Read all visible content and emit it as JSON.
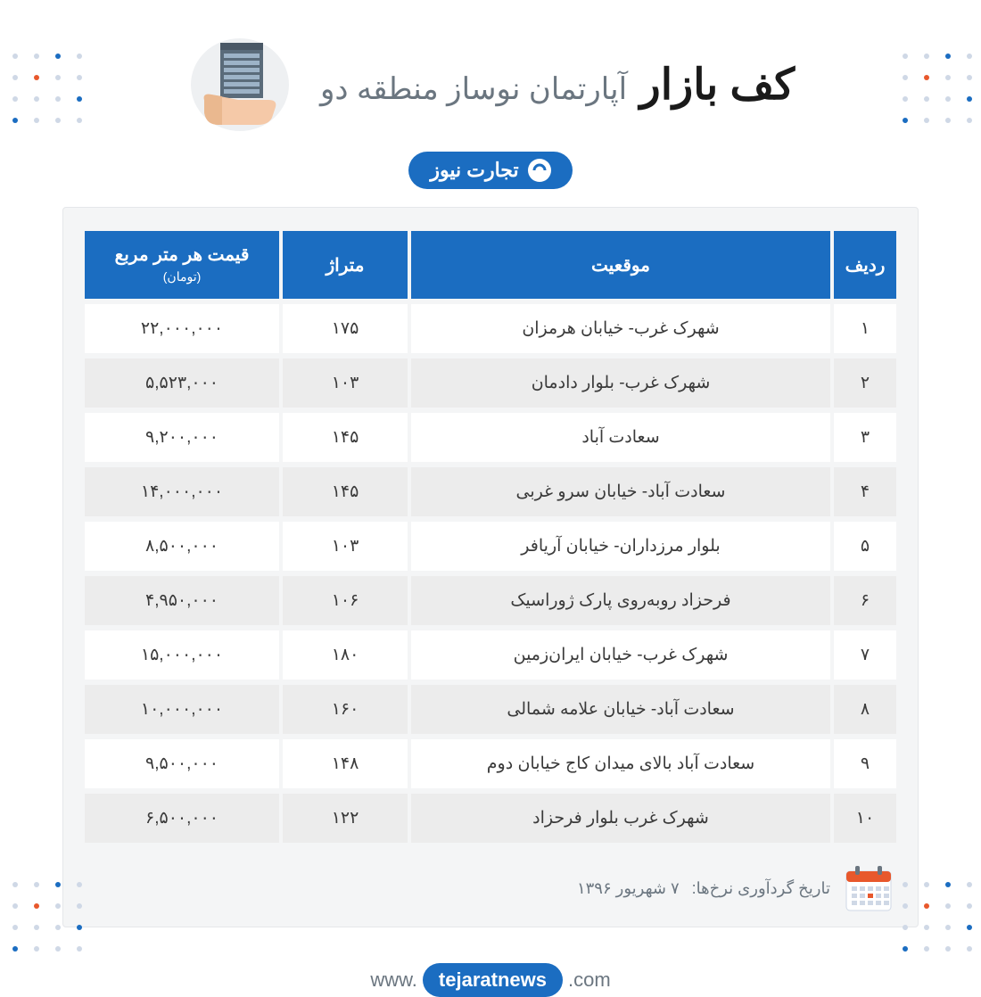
{
  "header": {
    "title_main": "کف بازار",
    "title_sub": "آپارتمان نوساز منطقه دو",
    "logo_text": "تجارت نیوز"
  },
  "table": {
    "columns": {
      "num": "ردیف",
      "location": "موقعیت",
      "area": "متراژ",
      "price": "قیمت هر متر مربع",
      "price_unit": "(تومان)"
    },
    "rows": [
      {
        "n": "۱",
        "loc": "شهرک غرب- خیابان هرمزان",
        "area": "۱۷۵",
        "price": "۲۲,۰۰۰,۰۰۰"
      },
      {
        "n": "۲",
        "loc": "شهرک غرب- بلوار دادمان",
        "area": "۱۰۳",
        "price": "۵,۵۲۳,۰۰۰"
      },
      {
        "n": "۳",
        "loc": "سعادت آباد",
        "area": "۱۴۵",
        "price": "۹,۲۰۰,۰۰۰"
      },
      {
        "n": "۴",
        "loc": "سعادت آباد- خیابان سرو غربی",
        "area": "۱۴۵",
        "price": "۱۴,۰۰۰,۰۰۰"
      },
      {
        "n": "۵",
        "loc": "بلوار مرزداران- خیابان آریافر",
        "area": "۱۰۳",
        "price": "۸,۵۰۰,۰۰۰"
      },
      {
        "n": "۶",
        "loc": "فرحزاد روبه‌روی پارک ژوراسیک",
        "area": "۱۰۶",
        "price": "۴,۹۵۰,۰۰۰"
      },
      {
        "n": "۷",
        "loc": "شهرک غرب- خیابان ایران‌زمین",
        "area": "۱۸۰",
        "price": "۱۵,۰۰۰,۰۰۰"
      },
      {
        "n": "۸",
        "loc": "سعادت آباد- خیابان علامه شمالی",
        "area": "۱۶۰",
        "price": "۱۰,۰۰۰,۰۰۰"
      },
      {
        "n": "۹",
        "loc": "سعادت آباد بالای میدان کاج خیابان دوم",
        "area": "۱۴۸",
        "price": "۹,۵۰۰,۰۰۰"
      },
      {
        "n": "۱۰",
        "loc": "شهرک غرب بلوار فرحزاد",
        "area": "۱۲۲",
        "price": "۶,۵۰۰,۰۰۰"
      }
    ]
  },
  "date": {
    "label": "تاریخ گردآوری نرخ‌ها:",
    "value": "۷ شهریور ۱۳۹۶"
  },
  "footer": {
    "prefix": "www.",
    "brand": "tejaratnews",
    "suffix": ".com"
  },
  "colors": {
    "primary": "#1b6dc1",
    "accent": "#e8582c",
    "bg_light": "#f4f5f6",
    "row_alt": "#ececec",
    "text_muted": "#6b7680"
  }
}
